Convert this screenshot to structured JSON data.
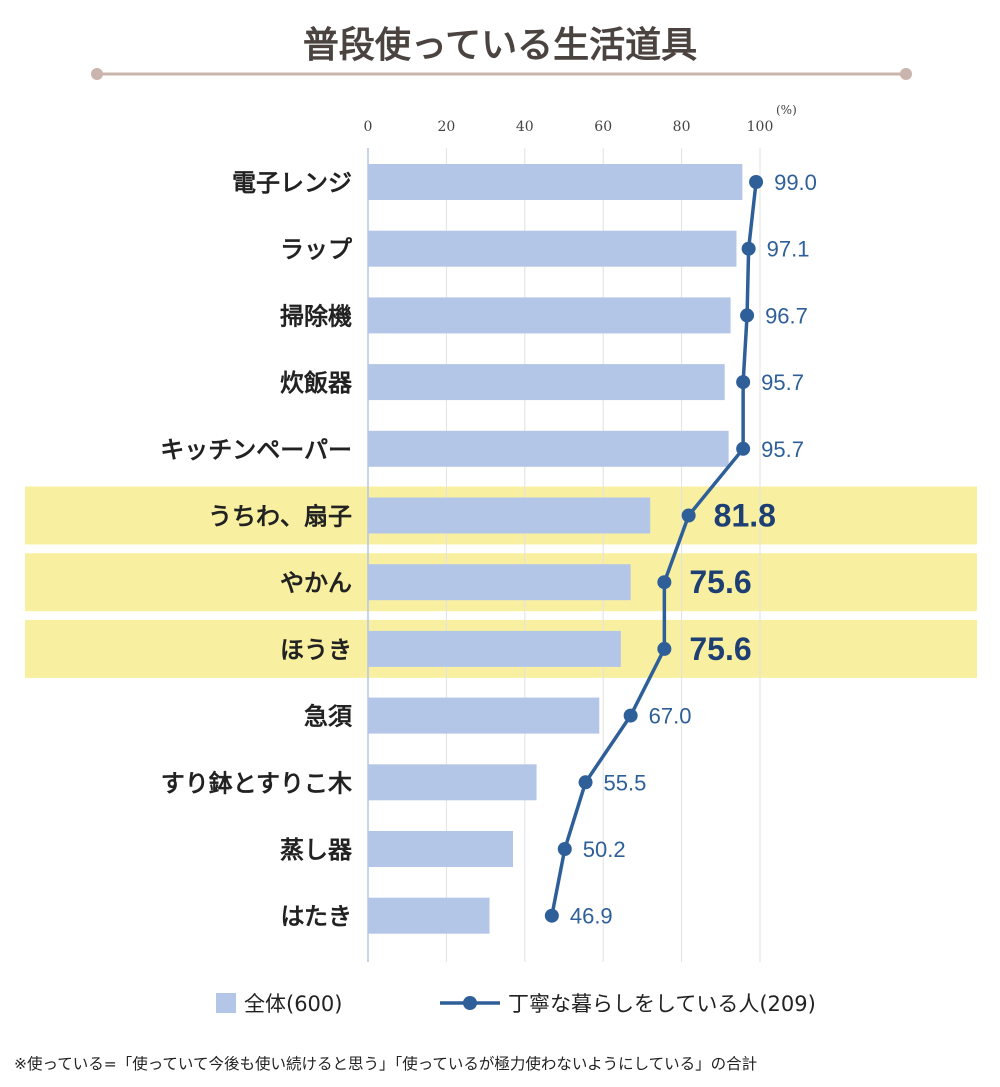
{
  "chart_data": {
    "type": "bar",
    "title": "普段使っている生活道具",
    "categories": [
      "電子レンジ",
      "ラップ",
      "掃除機",
      "炊飯器",
      "キッチンペーパー",
      "うちわ、扇子",
      "やかん",
      "ほうき",
      "急須",
      "すり鉢とすりこ木",
      "蒸し器",
      "はたき"
    ],
    "series": [
      {
        "name": "全体(600)",
        "kind": "bar",
        "color": "#b4c6e7",
        "values": [
          95.5,
          94,
          92.5,
          91,
          92,
          72,
          67,
          64.5,
          59,
          43,
          37,
          31
        ]
      },
      {
        "name": "丁寧な暮らしをしている人(209)",
        "kind": "line",
        "color": "#2e5f99",
        "values": [
          99.0,
          97.1,
          96.7,
          95.7,
          95.7,
          81.8,
          75.6,
          75.6,
          67.0,
          55.5,
          50.2,
          46.9
        ],
        "labels": [
          "99.0",
          "97.1",
          "96.7",
          "95.7",
          "95.7",
          "81.8",
          "75.6",
          "75.6",
          "67.0",
          "55.5",
          "50.2",
          "46.9"
        ]
      }
    ],
    "highlighted": [
      "うちわ、扇子",
      "やかん",
      "ほうき"
    ],
    "highlight_color": "#f8f0a0",
    "xlim": [
      0,
      100
    ],
    "xticks": [
      "0",
      "20",
      "40",
      "60",
      "80",
      "100"
    ],
    "xunit": "(%)",
    "legend_position": "bottom"
  },
  "footnote": "※使っている=「使っていて今後も使い続けると思う」「使っているが極力使わないようにしている」の合計",
  "colors": {
    "title_rule": "#c9b5ad",
    "grid": "#e2e2e2",
    "axis": "#b4c6e7"
  }
}
